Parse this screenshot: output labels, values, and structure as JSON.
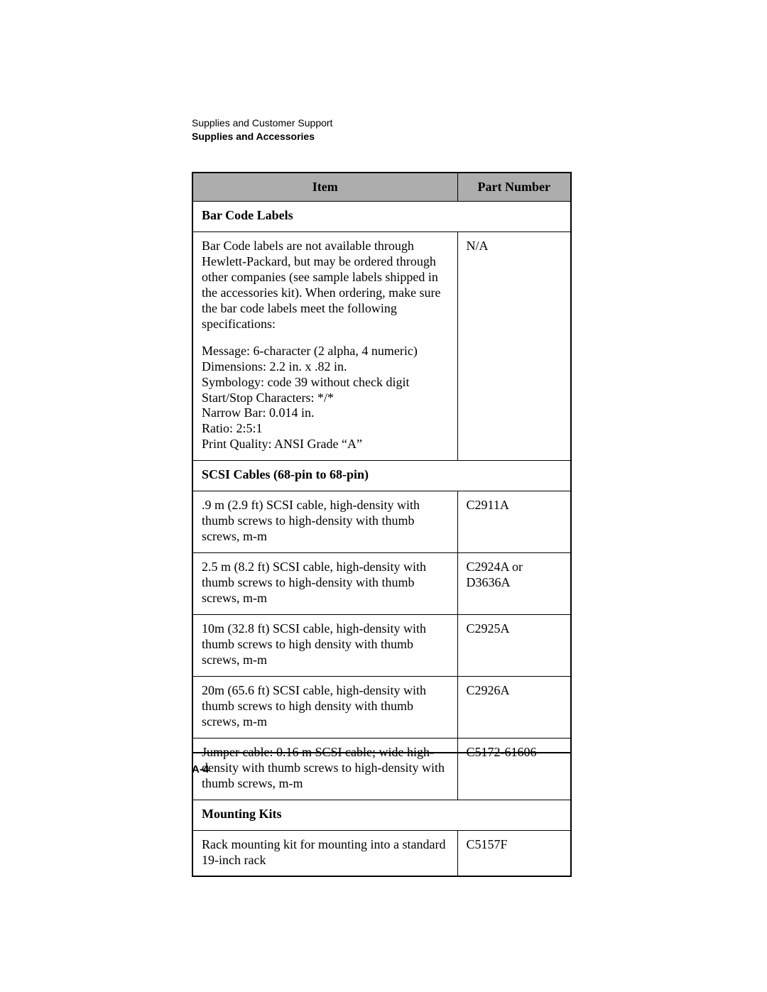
{
  "header": {
    "line1": "Supplies and Customer Support",
    "line2": "Supplies and Accessories"
  },
  "table": {
    "columns": [
      "Item",
      "Part Number"
    ],
    "rows": [
      {
        "type": "section",
        "label": "Bar Code Labels"
      },
      {
        "type": "multiblock",
        "item_intro": "Bar Code labels are not available through Hewlett-Packard, but may be ordered through other companies (see sample labels shipped in the accessories kit). When ordering, make sure the bar code labels meet the following specifications:",
        "item_specs": [
          "Message: 6-character (2 alpha, 4 numeric)",
          "Dimensions: 2.2 in. x .82 in.",
          "Symbology: code 39 without check digit",
          "Start/Stop Characters: */*",
          "Narrow Bar: 0.014 in.",
          "Ratio: 2:5:1",
          "Print Quality: ANSI Grade “A”"
        ],
        "part": "N/A"
      },
      {
        "type": "section",
        "label": "SCSI Cables (68-pin to 68-pin)"
      },
      {
        "type": "item",
        "item": ".9 m (2.9 ft) SCSI cable, high-density with thumb screws to high-density with thumb screws, m-m",
        "part": "C2911A"
      },
      {
        "type": "item",
        "item": "2.5 m (8.2 ft) SCSI cable, high-density with thumb screws to high-density with thumb screws, m-m",
        "part": "C2924A or D3636A"
      },
      {
        "type": "item",
        "item": "10m (32.8 ft) SCSI cable, high-density with thumb screws to high density with thumb screws, m-m",
        "part": "C2925A"
      },
      {
        "type": "item",
        "item": "20m (65.6 ft) SCSI cable, high-density with thumb screws to high density with thumb screws, m-m",
        "part": "C2926A"
      },
      {
        "type": "item",
        "item": "Jumper cable: 0.16 m SCSI cable; wide high-density with thumb screws to high-density with thumb screws, m-m",
        "part": "C5172-61606"
      },
      {
        "type": "section",
        "label": "Mounting Kits"
      },
      {
        "type": "item",
        "item": "Rack mounting kit for mounting into a standard 19-inch rack",
        "part": "C5157F"
      }
    ]
  },
  "footer": {
    "page": "A-4"
  }
}
